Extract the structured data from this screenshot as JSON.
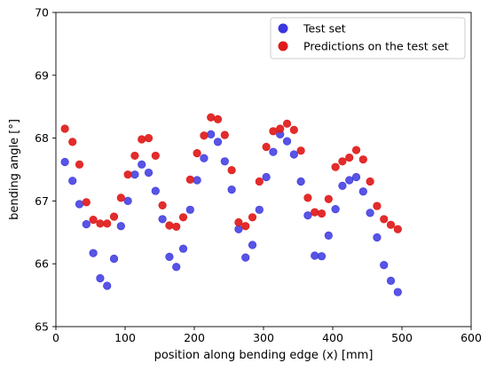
{
  "chart_data": {
    "type": "scatter",
    "title": "",
    "xlabel": "position along bending edge (x) [mm]",
    "ylabel": "bending angle [°]",
    "xlim": [
      0,
      600
    ],
    "ylim": [
      65,
      70
    ],
    "x_ticks": [
      "0",
      "100",
      "200",
      "300",
      "400",
      "500",
      "600"
    ],
    "y_ticks": [
      "65",
      "66",
      "67",
      "68",
      "69",
      "70"
    ],
    "grid": false,
    "legend_position": "top-right",
    "series": [
      {
        "name": "Test set",
        "color": "#3b36e0",
        "marker": "circle",
        "x": [
          13,
          24,
          34,
          44,
          54,
          64,
          74,
          84,
          94,
          104,
          114,
          124,
          134,
          144,
          154,
          164,
          174,
          184,
          194,
          204,
          214,
          224,
          234,
          244,
          254,
          264,
          274,
          284,
          294,
          304,
          314,
          324,
          334,
          344,
          354,
          364,
          374,
          384,
          394,
          404,
          414,
          424,
          434,
          444,
          454,
          464,
          474,
          484,
          494
        ],
        "y": [
          67.62,
          67.32,
          66.95,
          66.63,
          66.17,
          65.77,
          65.65,
          66.08,
          66.6,
          67.0,
          67.42,
          67.58,
          67.45,
          67.16,
          66.71,
          66.11,
          65.95,
          66.24,
          66.86,
          67.33,
          67.68,
          68.06,
          67.94,
          67.63,
          67.18,
          66.55,
          66.1,
          66.3,
          66.86,
          67.38,
          67.78,
          68.06,
          67.95,
          67.74,
          67.31,
          66.77,
          66.13,
          66.12,
          66.45,
          66.87,
          67.24,
          67.33,
          67.38,
          67.15,
          66.81,
          66.42,
          65.98,
          65.73,
          65.55
        ]
      },
      {
        "name": "Predictions on the test set",
        "color": "#e01a1a",
        "marker": "circle",
        "x": [
          13,
          24,
          34,
          44,
          54,
          64,
          74,
          84,
          94,
          104,
          114,
          124,
          134,
          144,
          154,
          164,
          174,
          184,
          194,
          204,
          214,
          224,
          234,
          244,
          254,
          264,
          274,
          284,
          294,
          304,
          314,
          324,
          334,
          344,
          354,
          364,
          374,
          384,
          394,
          404,
          414,
          424,
          434,
          444,
          454,
          464,
          474,
          484,
          494
        ],
        "y": [
          68.15,
          67.94,
          67.58,
          66.98,
          66.7,
          66.64,
          66.64,
          66.75,
          67.05,
          67.42,
          67.72,
          67.98,
          68.0,
          67.72,
          66.93,
          66.61,
          66.59,
          66.74,
          67.34,
          67.76,
          68.04,
          68.33,
          68.3,
          68.05,
          67.49,
          66.66,
          66.6,
          66.74,
          67.31,
          67.86,
          68.11,
          68.15,
          68.23,
          68.13,
          67.8,
          67.05,
          66.82,
          66.8,
          67.03,
          67.54,
          67.63,
          67.69,
          67.81,
          67.66,
          67.31,
          66.92,
          66.71,
          66.62,
          66.55
        ]
      }
    ]
  }
}
